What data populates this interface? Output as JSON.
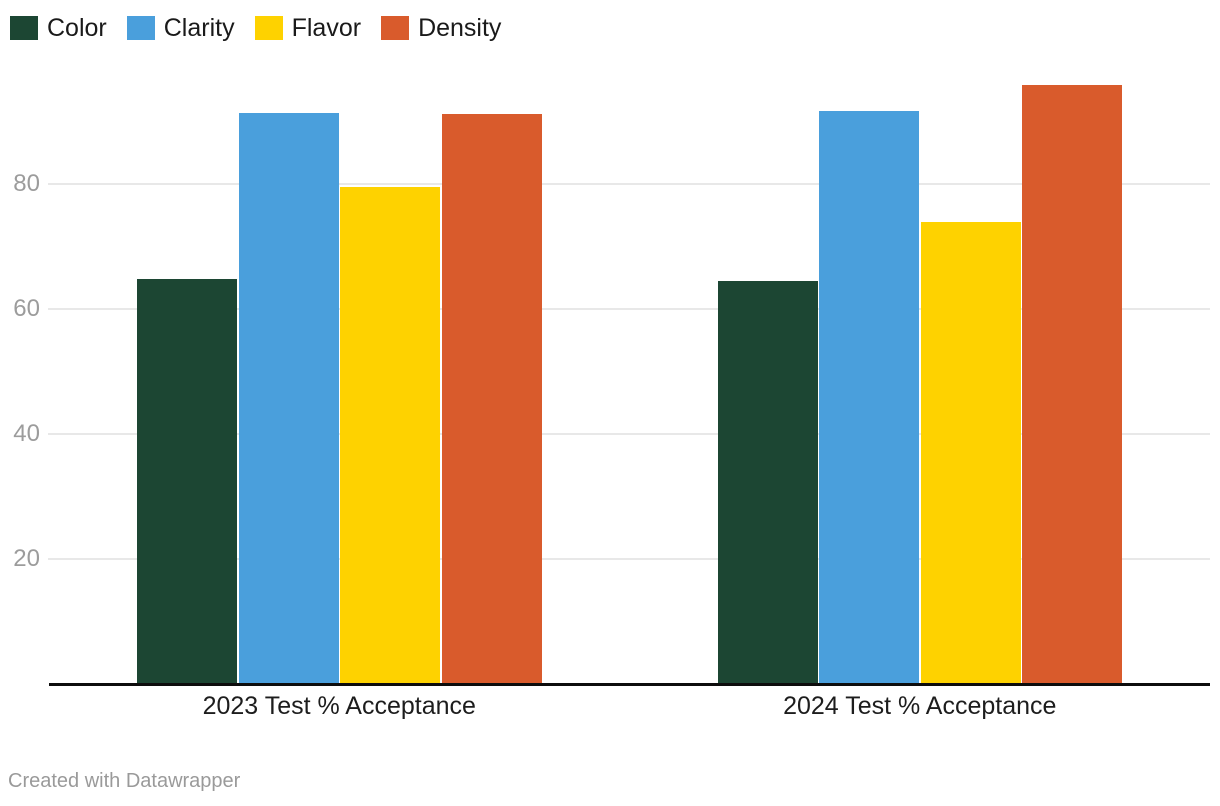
{
  "chart_data": {
    "type": "bar",
    "title": "",
    "categories": [
      "2023 Test % Acceptance",
      "2024 Test % Acceptance"
    ],
    "series": [
      {
        "name": "Color",
        "color": "#1c4633",
        "values": [
          64.8,
          64.5
        ]
      },
      {
        "name": "Clarity",
        "color": "#4a9fdc",
        "values": [
          91.3,
          91.7
        ]
      },
      {
        "name": "Flavor",
        "color": "#fed200",
        "values": [
          79.5,
          73.9
        ]
      },
      {
        "name": "Density",
        "color": "#d95b2c",
        "values": [
          91.2,
          95.9
        ]
      }
    ],
    "ylim": [
      0,
      100
    ],
    "yticks": [
      20,
      40,
      60,
      80
    ],
    "grid": true,
    "legend_position": "top-left",
    "xlabel": "",
    "ylabel": ""
  },
  "footer": {
    "credit": "Created with Datawrapper"
  },
  "colors": {
    "grid": "#e8e8e8",
    "axis": "#0d0d0d",
    "tick_text": "#9c9c9c",
    "label_text": "#1d1d1d",
    "credit_text": "#9a9a9a",
    "background": "#ffffff"
  }
}
